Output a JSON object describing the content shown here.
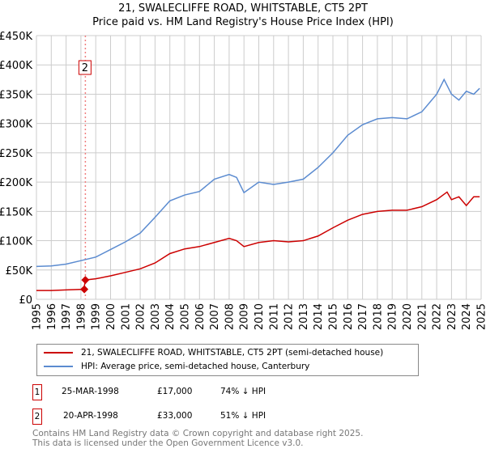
{
  "title": "21, SWALECLIFFE ROAD, WHITSTABLE, CT5 2PT",
  "subtitle": "Price paid vs. HM Land Registry's House Price Index (HPI)",
  "chart_data": {
    "type": "line",
    "title": "21, SWALECLIFFE ROAD, WHITSTABLE, CT5 2PT",
    "subtitle": "Price paid vs. HM Land Registry's House Price Index (HPI)",
    "xlim": [
      1995,
      2025
    ],
    "ylim": [
      0,
      450000
    ],
    "x_ticks": [
      "1995",
      "1996",
      "1997",
      "1998",
      "1999",
      "2000",
      "2001",
      "2002",
      "2003",
      "2004",
      "2005",
      "2006",
      "2007",
      "2008",
      "2009",
      "2010",
      "2011",
      "2012",
      "2013",
      "2014",
      "2015",
      "2016",
      "2017",
      "2018",
      "2019",
      "2020",
      "2021",
      "2022",
      "2023",
      "2024",
      "2025"
    ],
    "y_ticks": [
      {
        "v": 0,
        "label": "£0"
      },
      {
        "v": 50000,
        "label": "£50K"
      },
      {
        "v": 100000,
        "label": "£100K"
      },
      {
        "v": 150000,
        "label": "£150K"
      },
      {
        "v": 200000,
        "label": "£200K"
      },
      {
        "v": 250000,
        "label": "£250K"
      },
      {
        "v": 300000,
        "label": "£300K"
      },
      {
        "v": 350000,
        "label": "£350K"
      },
      {
        "v": 400000,
        "label": "£400K"
      },
      {
        "v": 450000,
        "label": "£450K"
      }
    ],
    "grid": true,
    "series": [
      {
        "name": "21, SWALECLIFFE ROAD, WHITSTABLE, CT5 2PT (semi-detached house)",
        "color": "#cc0000",
        "x": [
          1995,
          1996,
          1997,
          1998.2,
          1998.3,
          1999,
          2000,
          2001,
          2002,
          2003,
          2004,
          2005,
          2006,
          2007,
          2008,
          2008.5,
          2009,
          2010,
          2011,
          2012,
          2013,
          2014,
          2015,
          2016,
          2017,
          2018,
          2019,
          2020,
          2021,
          2022,
          2022.7,
          2023,
          2023.5,
          2024,
          2024.5,
          2024.9
        ],
        "y": [
          15000,
          15000,
          16000,
          17000,
          33000,
          35000,
          40000,
          46000,
          52000,
          62000,
          78000,
          86000,
          90000,
          97000,
          104000,
          100000,
          90000,
          97000,
          100000,
          98000,
          100000,
          108000,
          122000,
          135000,
          145000,
          150000,
          152000,
          152000,
          158000,
          170000,
          183000,
          170000,
          175000,
          160000,
          175000,
          175000
        ]
      },
      {
        "name": "HPI: Average price, semi-detached house, Canterbury",
        "color": "#5b8bd0",
        "x": [
          1995,
          1996,
          1997,
          1998,
          1999,
          2000,
          2001,
          2002,
          2003,
          2004,
          2005,
          2006,
          2007,
          2008,
          2008.5,
          2009,
          2010,
          2011,
          2012,
          2013,
          2014,
          2015,
          2016,
          2017,
          2018,
          2019,
          2020,
          2021,
          2022,
          2022.5,
          2023,
          2023.5,
          2024,
          2024.5,
          2024.9
        ],
        "y": [
          56000,
          57000,
          60000,
          66000,
          72000,
          85000,
          98000,
          113000,
          140000,
          168000,
          178000,
          184000,
          205000,
          213000,
          208000,
          182000,
          200000,
          196000,
          200000,
          205000,
          225000,
          250000,
          280000,
          298000,
          308000,
          310000,
          308000,
          320000,
          350000,
          375000,
          350000,
          340000,
          355000,
          350000,
          360000
        ]
      }
    ],
    "sales": [
      {
        "label": "1",
        "x": 1998.23,
        "y": 17000
      },
      {
        "label": "2",
        "x": 1998.3,
        "y": 33000
      }
    ],
    "annotation": {
      "label": "2",
      "x": 1998.3
    }
  },
  "legend": [
    "21, SWALECLIFFE ROAD, WHITSTABLE, CT5 2PT (semi-detached house)",
    "HPI: Average price, semi-detached house, Canterbury"
  ],
  "transactions": [
    {
      "num": "1",
      "date": "25-MAR-1998",
      "price": "£17,000",
      "hpi": "74% ↓ HPI"
    },
    {
      "num": "2",
      "date": "20-APR-1998",
      "price": "£33,000",
      "hpi": "51% ↓ HPI"
    }
  ],
  "footer": [
    "Contains HM Land Registry data © Crown copyright and database right 2025.",
    "This data is licensed under the Open Government Licence v3.0."
  ]
}
